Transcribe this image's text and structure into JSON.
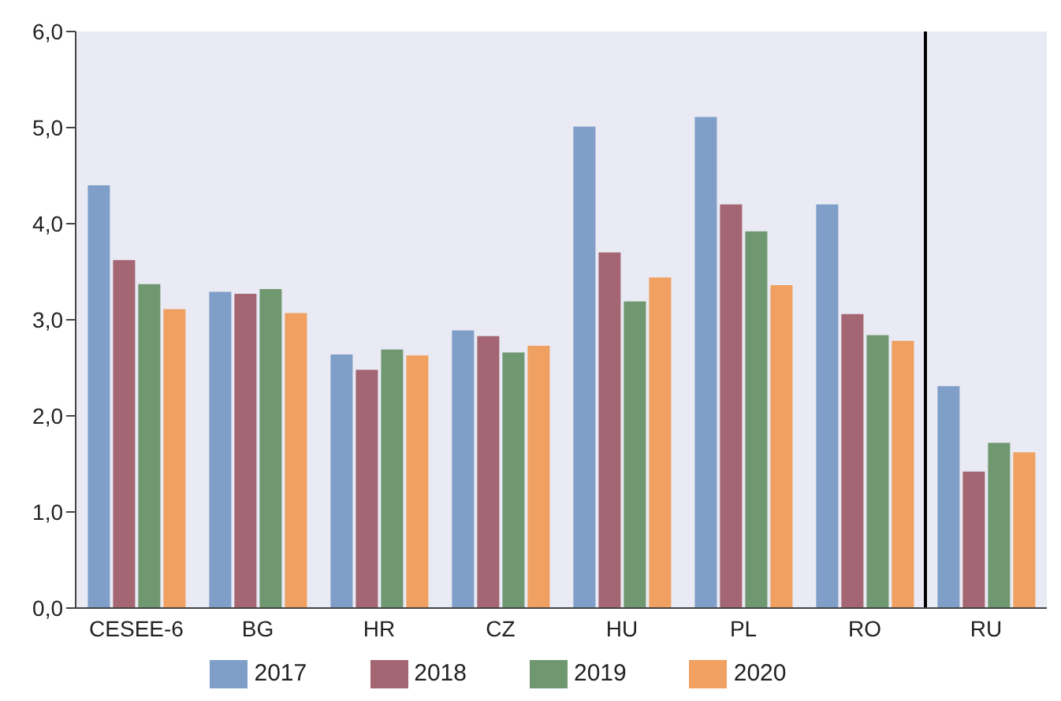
{
  "chart_data": {
    "type": "bar",
    "categories": [
      "CESEE-6",
      "BG",
      "HR",
      "CZ",
      "HU",
      "PL",
      "RO",
      "RU"
    ],
    "series": [
      {
        "name": "2017",
        "color": "#7f9fc8",
        "values": [
          4.4,
          3.29,
          2.64,
          2.89,
          5.01,
          5.11,
          4.2,
          2.31
        ]
      },
      {
        "name": "2018",
        "color": "#a36672",
        "values": [
          3.62,
          3.27,
          2.48,
          2.83,
          3.7,
          4.2,
          3.06,
          1.42
        ]
      },
      {
        "name": "2019",
        "color": "#6f9870",
        "values": [
          3.37,
          3.32,
          2.69,
          2.66,
          3.19,
          3.92,
          2.84,
          1.72
        ]
      },
      {
        "name": "2020",
        "color": "#f0a060",
        "values": [
          3.11,
          3.07,
          2.63,
          2.73,
          3.44,
          3.36,
          2.78,
          1.62
        ]
      }
    ],
    "ylim": [
      0,
      6
    ],
    "yticks": [
      {
        "value": 0,
        "label": "0,0"
      },
      {
        "value": 1,
        "label": "1,0"
      },
      {
        "value": 2,
        "label": "2,0"
      },
      {
        "value": 3,
        "label": "3,0"
      },
      {
        "value": 4,
        "label": "4,0"
      },
      {
        "value": 5,
        "label": "5,0"
      },
      {
        "value": 6,
        "label": "6,0"
      }
    ],
    "grid": false,
    "legend": "bottom"
  }
}
